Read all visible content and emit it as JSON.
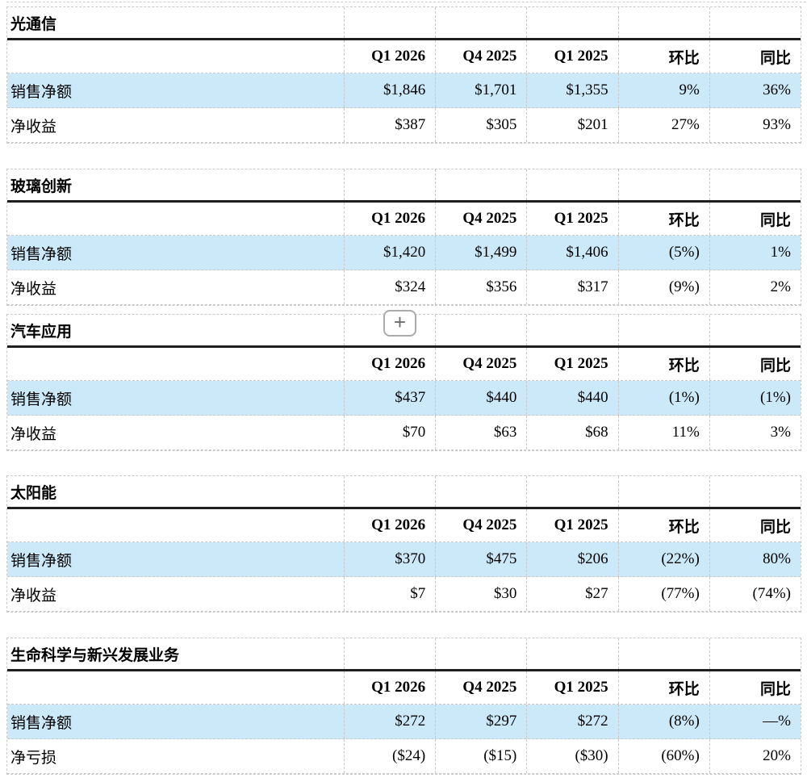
{
  "colors": {
    "highlight_row": "#cce9fa",
    "grid_dash": "#c9c9c9",
    "heavy_rule": "#1f1f1f"
  },
  "ui": {
    "plus_button_label": "+"
  },
  "columns": [
    "Q1 2026",
    "Q4 2025",
    "Q1 2025",
    "环比",
    "同比"
  ],
  "sections": [
    {
      "title": "光通信",
      "plus_button": false,
      "rows": [
        {
          "label": "销售净额",
          "highlight": true,
          "values": [
            "$1,846",
            "$1,701",
            "$1,355",
            "9%",
            "36%"
          ]
        },
        {
          "label": "净收益",
          "highlight": false,
          "values": [
            "$387",
            "$305",
            "$201",
            "27%",
            "93%"
          ]
        }
      ]
    },
    {
      "title": "玻璃创新",
      "plus_button": false,
      "rows": [
        {
          "label": "销售净额",
          "highlight": true,
          "values": [
            "$1,420",
            "$1,499",
            "$1,406",
            "(5%)",
            "1%"
          ]
        },
        {
          "label": "净收益",
          "highlight": false,
          "values": [
            "$324",
            "$356",
            "$317",
            "(9%)",
            "2%"
          ]
        }
      ]
    },
    {
      "title": "汽车应用",
      "plus_button": true,
      "rows": [
        {
          "label": "销售净额",
          "highlight": true,
          "values": [
            "$437",
            "$440",
            "$440",
            "(1%)",
            "(1%)"
          ]
        },
        {
          "label": "净收益",
          "highlight": false,
          "values": [
            "$70",
            "$63",
            "$68",
            "11%",
            "3%"
          ]
        }
      ]
    },
    {
      "title": "太阳能",
      "plus_button": false,
      "rows": [
        {
          "label": "销售净额",
          "highlight": true,
          "values": [
            "$370",
            "$475",
            "$206",
            "(22%)",
            "80%"
          ]
        },
        {
          "label": "净收益",
          "highlight": false,
          "values": [
            "$7",
            "$30",
            "$27",
            "(77%)",
            "(74%)"
          ]
        }
      ]
    },
    {
      "title": "生命科学与新兴发展业务",
      "plus_button": false,
      "rows": [
        {
          "label": "销售净额",
          "highlight": true,
          "values": [
            "$272",
            "$297",
            "$272",
            "(8%)",
            "—%"
          ]
        },
        {
          "label": "净亏损",
          "highlight": false,
          "values": [
            "($24)",
            "($15)",
            "($30)",
            "(60%)",
            "20%"
          ]
        }
      ]
    }
  ]
}
